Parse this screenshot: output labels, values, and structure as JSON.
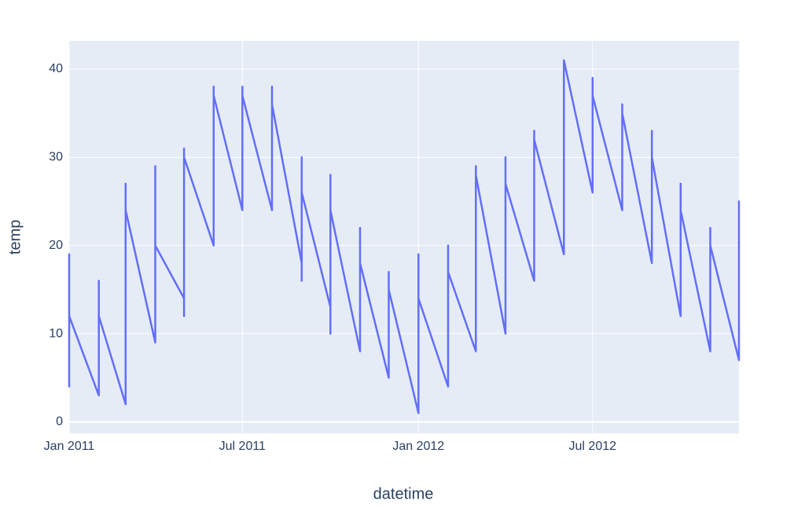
{
  "chart_data": {
    "type": "line",
    "x_label": "datetime",
    "y_label": "temp",
    "color": "#636efa",
    "grid": true,
    "x": [
      "2011-01",
      "2011-01",
      "2011-01",
      "2011-01",
      "2011-02",
      "2011-02",
      "2011-02",
      "2011-02",
      "2011-03",
      "2011-03",
      "2011-03",
      "2011-03",
      "2011-04",
      "2011-04",
      "2011-04",
      "2011-04",
      "2011-05",
      "2011-05",
      "2011-05",
      "2011-05",
      "2011-06",
      "2011-06",
      "2011-06",
      "2011-06",
      "2011-07",
      "2011-07",
      "2011-07",
      "2011-07",
      "2011-08",
      "2011-08",
      "2011-08",
      "2011-08",
      "2011-09",
      "2011-09",
      "2011-09",
      "2011-09",
      "2011-10",
      "2011-10",
      "2011-10",
      "2011-10",
      "2011-11",
      "2011-11",
      "2011-11",
      "2011-11",
      "2011-12",
      "2011-12",
      "2011-12",
      "2011-12",
      "2012-01",
      "2012-01",
      "2012-01",
      "2012-01",
      "2012-02",
      "2012-02",
      "2012-02",
      "2012-02",
      "2012-03",
      "2012-03",
      "2012-03",
      "2012-03",
      "2012-04",
      "2012-04",
      "2012-04",
      "2012-04",
      "2012-05",
      "2012-05",
      "2012-05",
      "2012-05",
      "2012-06",
      "2012-06",
      "2012-06",
      "2012-06",
      "2012-07",
      "2012-07",
      "2012-07",
      "2012-07",
      "2012-08",
      "2012-08",
      "2012-08",
      "2012-08",
      "2012-09",
      "2012-09",
      "2012-09",
      "2012-09",
      "2012-10",
      "2012-10",
      "2012-10",
      "2012-10",
      "2012-11",
      "2012-11",
      "2012-11",
      "2012-11",
      "2012-12",
      "2012-12",
      "2012-12",
      "2012-12"
    ],
    "values": [
      6,
      19,
      4,
      12,
      3,
      16,
      6,
      12,
      2,
      27,
      5,
      24,
      9,
      29,
      10,
      20,
      14,
      31,
      12,
      30,
      20,
      38,
      22,
      37,
      24,
      38,
      25,
      37,
      24,
      38,
      25,
      36,
      18,
      30,
      16,
      26,
      13,
      28,
      10,
      24,
      8,
      22,
      9,
      18,
      5,
      17,
      6,
      15,
      1,
      19,
      3,
      14,
      4,
      20,
      6,
      17,
      8,
      29,
      10,
      28,
      10,
      30,
      11,
      27,
      16,
      33,
      18,
      32,
      19,
      35,
      22,
      41,
      26,
      39,
      27,
      37,
      24,
      36,
      25,
      35,
      18,
      33,
      19,
      30,
      12,
      27,
      13,
      24,
      8,
      22,
      9,
      20,
      7,
      25,
      9,
      21
    ],
    "xlim": [
      "2011-01",
      "2012-12"
    ],
    "xticks": [
      {
        "value": "2011-01",
        "label": "Jan 2011"
      },
      {
        "value": "2011-07",
        "label": "Jul 2011"
      },
      {
        "value": "2012-01",
        "label": "Jan 2012"
      },
      {
        "value": "2012-07",
        "label": "Jul 2012"
      }
    ],
    "ylim": [
      -1.3,
      43.2
    ],
    "yticks": [
      0,
      10,
      20,
      30,
      40
    ]
  }
}
